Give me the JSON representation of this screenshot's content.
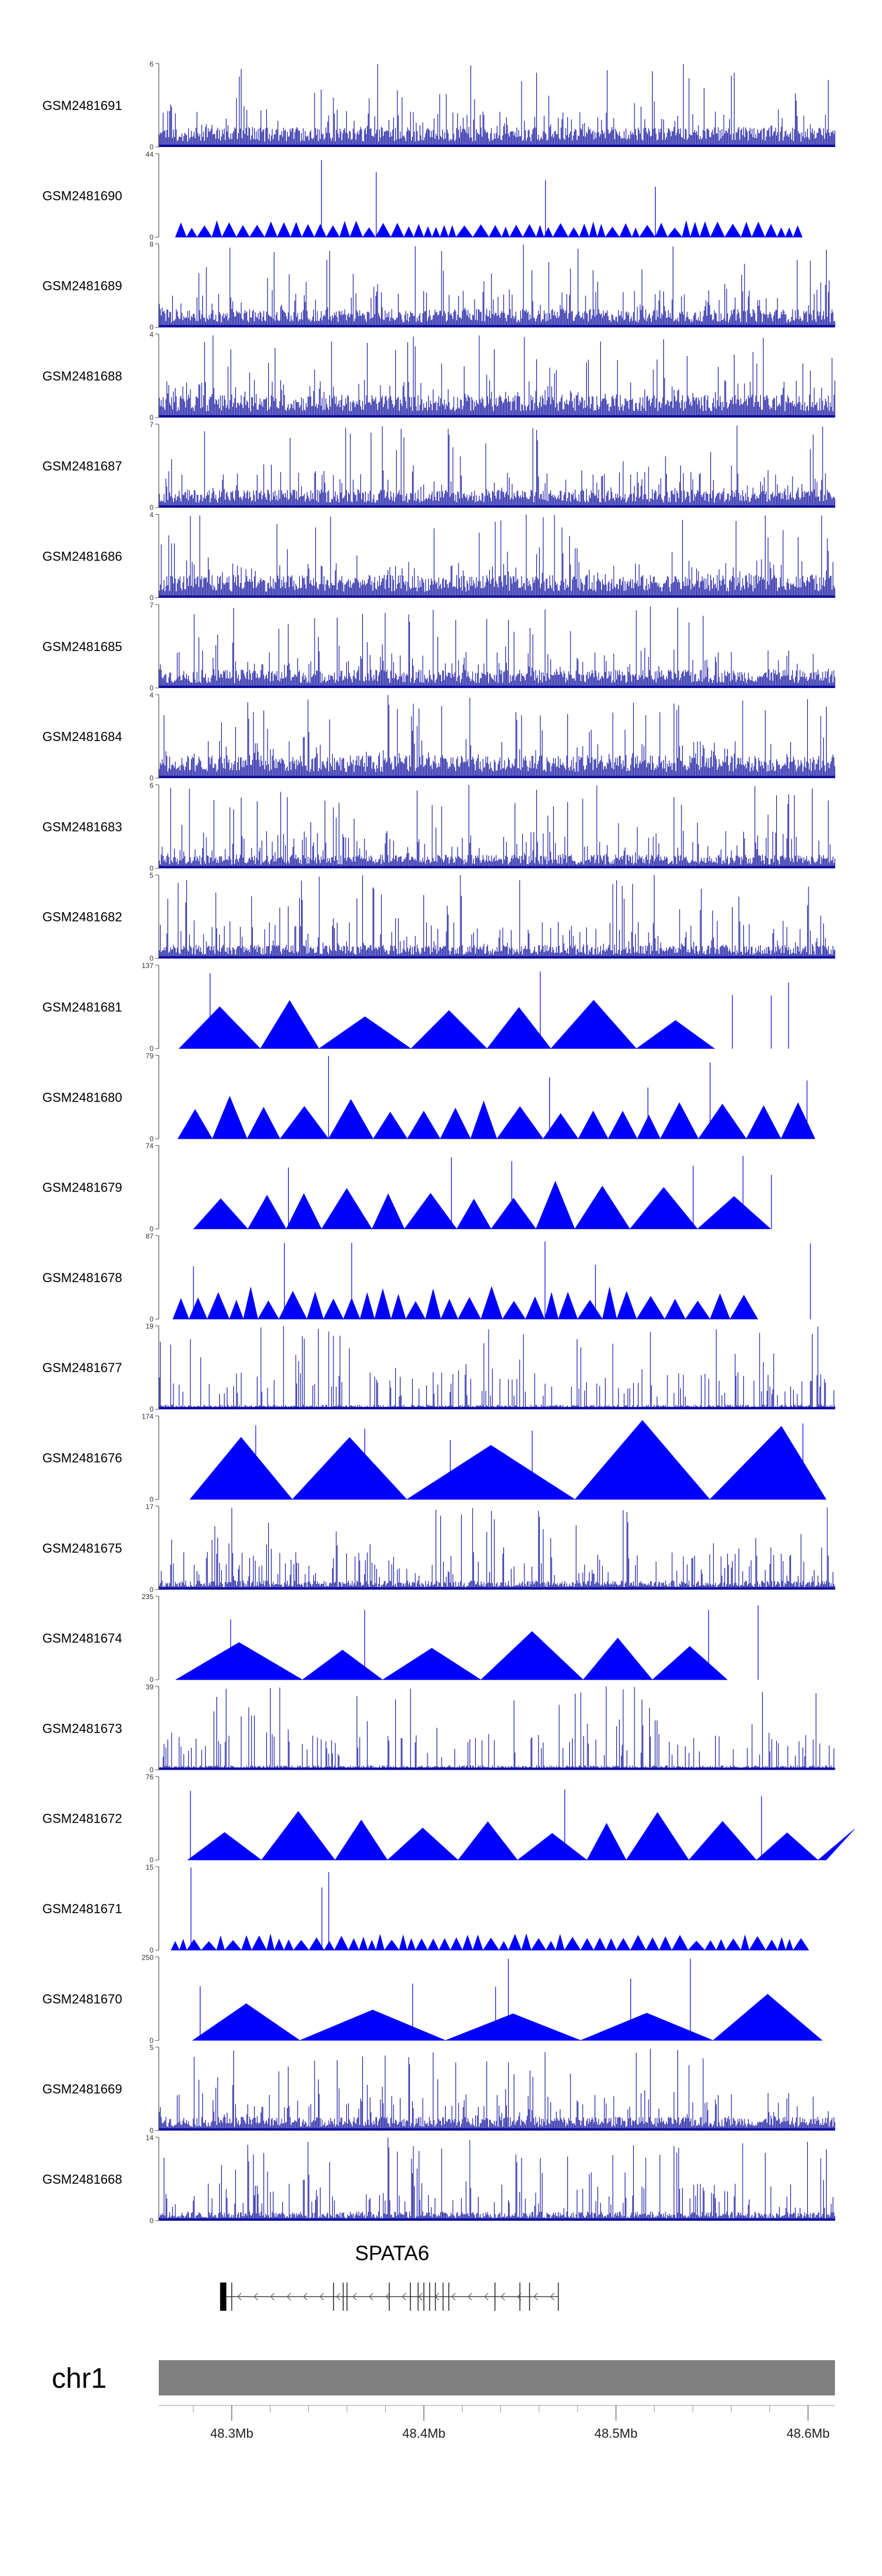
{
  "chart_data": {
    "type": "area",
    "title": "",
    "chromosome": "chr1",
    "x_unit": "Mb",
    "xlim": [
      48.262,
      48.614
    ],
    "x_ticks": [
      48.3,
      48.4,
      48.5,
      48.6
    ],
    "x_tick_labels": [
      "48.3Mb",
      "48.4Mb",
      "48.5Mb",
      "48.6Mb"
    ],
    "minor_ticks": [
      48.28,
      48.3,
      48.32,
      48.34,
      48.36,
      48.38,
      48.4,
      48.42,
      48.44,
      48.46,
      48.48,
      48.5,
      48.52,
      48.54,
      48.56,
      48.58,
      48.6
    ],
    "gene": {
      "name": "SPATA6",
      "strand": "-",
      "start": 48.297,
      "end": 48.47,
      "exons": [
        48.297,
        48.3,
        48.353,
        48.358,
        48.36,
        48.382,
        48.393,
        48.397,
        48.4,
        48.403,
        48.406,
        48.41,
        48.413,
        48.437,
        48.45,
        48.455,
        48.47
      ]
    },
    "series": [
      {
        "name": "GSM2481691",
        "ymax": 6,
        "style": "bars",
        "density": 0.9,
        "baseline": 0.22
      },
      {
        "name": "GSM2481690",
        "ymax": 44,
        "style": "triangles",
        "density": 0.9,
        "baseline": 0.15
      },
      {
        "name": "GSM2481689",
        "ymax": 8,
        "style": "bars",
        "density": 0.9,
        "baseline": 0.2
      },
      {
        "name": "GSM2481688",
        "ymax": 4,
        "style": "bars",
        "density": 0.9,
        "baseline": 0.25
      },
      {
        "name": "GSM2481687",
        "ymax": 7,
        "style": "bars",
        "density": 0.9,
        "baseline": 0.2
      },
      {
        "name": "GSM2481686",
        "ymax": 4,
        "style": "bars",
        "density": 0.9,
        "baseline": 0.25
      },
      {
        "name": "GSM2481685",
        "ymax": 7,
        "style": "bars",
        "density": 0.9,
        "baseline": 0.2
      },
      {
        "name": "GSM2481684",
        "ymax": 4,
        "style": "bars",
        "density": 0.9,
        "baseline": 0.25
      },
      {
        "name": "GSM2481683",
        "ymax": 6,
        "style": "bars",
        "density": 0.9,
        "baseline": 0.15
      },
      {
        "name": "GSM2481682",
        "ymax": 5,
        "style": "bars",
        "density": 0.9,
        "baseline": 0.15
      },
      {
        "name": "GSM2481681",
        "ymax": 137,
        "style": "triangles",
        "density": 0.12,
        "baseline": 0.45
      },
      {
        "name": "GSM2481680",
        "ymax": 79,
        "style": "triangles",
        "density": 0.3,
        "baseline": 0.4
      },
      {
        "name": "GSM2481679",
        "ymax": 74,
        "style": "triangles",
        "density": 0.2,
        "baseline": 0.45
      },
      {
        "name": "GSM2481678",
        "ymax": 87,
        "style": "triangles",
        "density": 0.5,
        "baseline": 0.3
      },
      {
        "name": "GSM2481677",
        "ymax": 19,
        "style": "bars",
        "density": 0.9,
        "baseline": 0.05
      },
      {
        "name": "GSM2481676",
        "ymax": 174,
        "style": "triangles",
        "density": 0.05,
        "baseline": 0.9
      },
      {
        "name": "GSM2481675",
        "ymax": 17,
        "style": "bars",
        "density": 0.9,
        "baseline": 0.1
      },
      {
        "name": "GSM2481674",
        "ymax": 235,
        "style": "triangles",
        "density": 0.1,
        "baseline": 0.45
      },
      {
        "name": "GSM2481673",
        "ymax": 39,
        "style": "bars",
        "density": 0.9,
        "baseline": 0.05
      },
      {
        "name": "GSM2481672",
        "ymax": 76,
        "style": "triangles",
        "density": 0.2,
        "baseline": 0.45
      },
      {
        "name": "GSM2481671",
        "ymax": 15,
        "style": "triangles",
        "density": 0.9,
        "baseline": 0.15
      },
      {
        "name": "GSM2481670",
        "ymax": 250,
        "style": "triangles",
        "density": 0.07,
        "baseline": 0.45
      },
      {
        "name": "GSM2481669",
        "ymax": 5,
        "style": "bars",
        "density": 0.9,
        "baseline": 0.15
      },
      {
        "name": "GSM2481668",
        "ymax": 14,
        "style": "bars",
        "density": 0.9,
        "baseline": 0.1
      }
    ],
    "colors": {
      "signal": "#0b0b9e",
      "fill": "#0000ff",
      "ideogram": "#808080",
      "axis": "#555555",
      "text": "#000000"
    }
  }
}
